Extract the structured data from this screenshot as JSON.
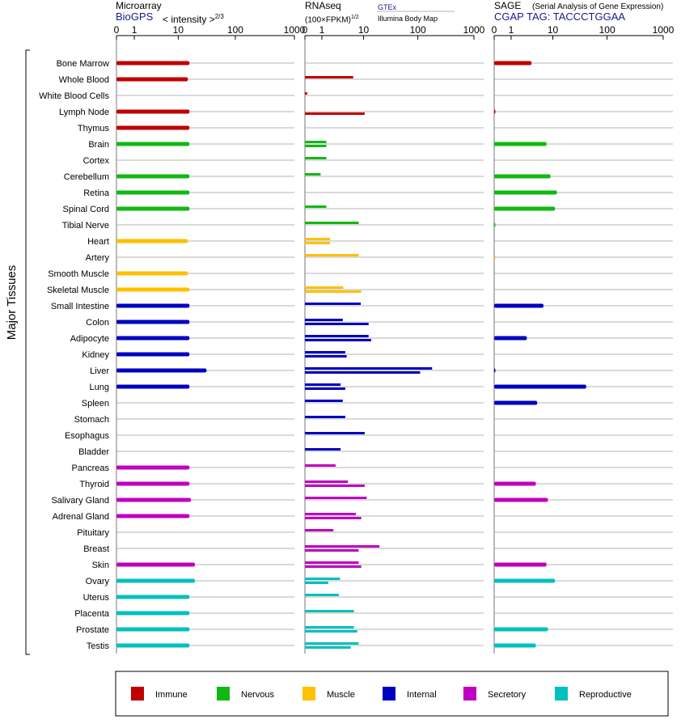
{
  "headers": {
    "microarray": {
      "title": "Microarray",
      "source": "BioGPS",
      "unit_prefix": "< intensity >",
      "unit_exp": "2/3"
    },
    "rnaseq": {
      "title": "RNAseq",
      "unit_prefix": "(100×FPKM)",
      "unit_exp": "1/2",
      "source1": "GTEx",
      "source2": "Illumina Body Map"
    },
    "sage": {
      "title": "SAGE",
      "subtitle": "(Serial Analysis of Gene Expression)",
      "tag": "CGAP TAG: TACCCTGGAA"
    }
  },
  "y_axis_label": "Major Tissues",
  "axis_ticks": [
    "0",
    "1",
    "10",
    "100",
    "1000"
  ],
  "colors": {
    "Immune": "#c00000",
    "Nervous": "#12b812",
    "Muscle": "#ffc000",
    "Internal": "#0000c0",
    "Secretory": "#c000c0",
    "Reproductive": "#00c0c0"
  },
  "legend": [
    "Immune",
    "Nervous",
    "Muscle",
    "Internal",
    "Secretory",
    "Reproductive"
  ],
  "chart_data": [
    {
      "type": "bar",
      "title": "Microarray",
      "scale": "log",
      "xlim": [
        0,
        1000
      ],
      "categories": [
        "Bone Marrow",
        "Whole Blood",
        "White Blood Cells",
        "Lymph Node",
        "Thymus",
        "Brain",
        "Cortex",
        "Cerebellum",
        "Retina",
        "Spinal Cord",
        "Tibial Nerve",
        "Heart",
        "Artery",
        "Smooth Muscle",
        "Skeletal Muscle",
        "Small Intestine",
        "Colon",
        "Adipocyte",
        "Kidney",
        "Liver",
        "Lung",
        "Spleen",
        "Stomach",
        "Esophagus",
        "Bladder",
        "Pancreas",
        "Thyroid",
        "Salivary Gland",
        "Adrenal Gland",
        "Pituitary",
        "Breast",
        "Skin",
        "Ovary",
        "Uterus",
        "Placenta",
        "Prostate",
        "Testis"
      ],
      "groups": [
        "Immune",
        "Immune",
        "Immune",
        "Immune",
        "Immune",
        "Nervous",
        "Nervous",
        "Nervous",
        "Nervous",
        "Nervous",
        "Nervous",
        "Muscle",
        "Muscle",
        "Muscle",
        "Muscle",
        "Internal",
        "Internal",
        "Internal",
        "Internal",
        "Internal",
        "Internal",
        "Internal",
        "Internal",
        "Internal",
        "Internal",
        "Secretory",
        "Secretory",
        "Secretory",
        "Secretory",
        "Secretory",
        "Secretory",
        "Secretory",
        "Reproductive",
        "Reproductive",
        "Reproductive",
        "Reproductive",
        "Reproductive"
      ],
      "series": [
        {
          "values": [
            16,
            15,
            null,
            16,
            16,
            16,
            null,
            16,
            16,
            16,
            null,
            15,
            null,
            15,
            16,
            16,
            16,
            16,
            16,
            32,
            16,
            null,
            null,
            null,
            null,
            16,
            16,
            17,
            16,
            null,
            null,
            20,
            20,
            16,
            16,
            16,
            16
          ]
        }
      ]
    },
    {
      "type": "bar",
      "title": "RNAseq",
      "scale": "log",
      "xlim": [
        0,
        1000
      ],
      "categories": [
        "Bone Marrow",
        "Whole Blood",
        "White Blood Cells",
        "Lymph Node",
        "Thymus",
        "Brain",
        "Cortex",
        "Cerebellum",
        "Retina",
        "Spinal Cord",
        "Tibial Nerve",
        "Heart",
        "Artery",
        "Smooth Muscle",
        "Skeletal Muscle",
        "Small Intestine",
        "Colon",
        "Adipocyte",
        "Kidney",
        "Liver",
        "Lung",
        "Spleen",
        "Stomach",
        "Esophagus",
        "Bladder",
        "Pancreas",
        "Thyroid",
        "Salivary Gland",
        "Adrenal Gland",
        "Pituitary",
        "Breast",
        "Skin",
        "Ovary",
        "Uterus",
        "Placenta",
        "Prostate",
        "Testis"
      ],
      "groups": [
        "Immune",
        "Immune",
        "Immune",
        "Immune",
        "Immune",
        "Nervous",
        "Nervous",
        "Nervous",
        "Nervous",
        "Nervous",
        "Nervous",
        "Muscle",
        "Muscle",
        "Muscle",
        "Muscle",
        "Internal",
        "Internal",
        "Internal",
        "Internal",
        "Internal",
        "Internal",
        "Internal",
        "Internal",
        "Internal",
        "Internal",
        "Secretory",
        "Secretory",
        "Secretory",
        "Secretory",
        "Secretory",
        "Secretory",
        "Secretory",
        "Reproductive",
        "Reproductive",
        "Reproductive",
        "Reproductive",
        "Reproductive"
      ],
      "series": [
        {
          "name": "GTEx",
          "values": [
            null,
            6.2,
            0.1,
            null,
            null,
            1.4,
            1.4,
            0.9,
            null,
            1.4,
            8,
            1.8,
            8,
            null,
            3.8,
            8.8,
            3.7,
            12.5,
            4.2,
            180,
            3.3,
            3.7,
            4.2,
            10.5,
            3.3,
            2.5,
            4.8,
            11.5,
            7,
            2.2,
            20,
            8,
            3.2,
            3,
            6.4,
            6.4,
            8
          ]
        },
        {
          "name": "Illumina Body Map",
          "values": [
            null,
            null,
            null,
            10.5,
            null,
            1.4,
            null,
            null,
            null,
            null,
            null,
            1.8,
            null,
            null,
            9,
            null,
            12.5,
            14,
            4.5,
            110,
            4.2,
            null,
            null,
            null,
            null,
            null,
            10.5,
            null,
            9,
            null,
            8,
            9,
            1.6,
            null,
            null,
            7.5,
            5.5
          ]
        }
      ]
    },
    {
      "type": "bar",
      "title": "SAGE",
      "scale": "log",
      "xlim": [
        0,
        1000
      ],
      "categories": [
        "Bone Marrow",
        "Whole Blood",
        "White Blood Cells",
        "Lymph Node",
        "Thymus",
        "Brain",
        "Cortex",
        "Cerebellum",
        "Retina",
        "Spinal Cord",
        "Tibial Nerve",
        "Heart",
        "Artery",
        "Smooth Muscle",
        "Skeletal Muscle",
        "Small Intestine",
        "Colon",
        "Adipocyte",
        "Kidney",
        "Liver",
        "Lung",
        "Spleen",
        "Stomach",
        "Esophagus",
        "Bladder",
        "Pancreas",
        "Thyroid",
        "Salivary Gland",
        "Adrenal Gland",
        "Pituitary",
        "Breast",
        "Skin",
        "Ovary",
        "Uterus",
        "Placenta",
        "Prostate",
        "Testis"
      ],
      "groups": [
        "Immune",
        "Immune",
        "Immune",
        "Immune",
        "Immune",
        "Nervous",
        "Nervous",
        "Nervous",
        "Nervous",
        "Nervous",
        "Nervous",
        "Muscle",
        "Muscle",
        "Muscle",
        "Muscle",
        "Internal",
        "Internal",
        "Internal",
        "Internal",
        "Internal",
        "Internal",
        "Internal",
        "Internal",
        "Internal",
        "Internal",
        "Secretory",
        "Secretory",
        "Secretory",
        "Secretory",
        "Secretory",
        "Secretory",
        "Secretory",
        "Reproductive",
        "Reproductive",
        "Reproductive",
        "Reproductive",
        "Reproductive"
      ],
      "series": [
        {
          "values": [
            3.6,
            null,
            null,
            0.05,
            null,
            7.5,
            null,
            9,
            12,
            11,
            0.05,
            null,
            0.03,
            null,
            null,
            6.5,
            null,
            2.8,
            null,
            0.05,
            42,
            4.8,
            null,
            null,
            null,
            null,
            4.5,
            8,
            null,
            null,
            null,
            7.5,
            11,
            null,
            null,
            8,
            4.5
          ]
        }
      ]
    }
  ]
}
